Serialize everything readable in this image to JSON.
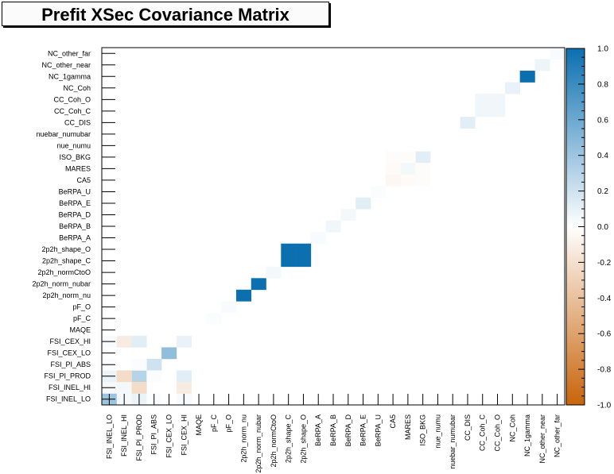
{
  "chart_data": {
    "type": "heatmap",
    "title": "Prefit XSec Covariance Matrix",
    "parameters": [
      "FSI_INEL_LO",
      "FSI_INEL_HI",
      "FSI_PI_PROD",
      "FSI_PI_ABS",
      "FSI_CEX_LO",
      "FSI_CEX_HI",
      "MAQE",
      "pF_C",
      "pF_O",
      "2p2h_norm_nu",
      "2p2h_norm_nubar",
      "2p2h_normCtoO",
      "2p2h_shape_C",
      "2p2h_shape_O",
      "BeRPA_A",
      "BeRPA_B",
      "BeRPA_D",
      "BeRPA_E",
      "BeRPA_U",
      "CA5",
      "MARES",
      "ISO_BKG",
      "nue_numu",
      "nuebar_numubar",
      "CC_DIS",
      "CC_Coh_C",
      "CC_Coh_O",
      "NC_Coh",
      "NC_1gamma",
      "NC_other_near",
      "NC_other_far"
    ],
    "cells": [
      [
        0,
        0,
        0.41
      ],
      [
        1,
        1,
        0.05
      ],
      [
        2,
        2,
        0.3
      ],
      [
        3,
        3,
        0.2
      ],
      [
        4,
        4,
        0.45
      ],
      [
        5,
        5,
        0.09
      ],
      [
        0,
        1,
        0.04
      ],
      [
        1,
        0,
        0.04
      ],
      [
        0,
        2,
        0.08
      ],
      [
        2,
        0,
        0.08
      ],
      [
        1,
        2,
        -0.22
      ],
      [
        2,
        1,
        -0.22
      ],
      [
        0,
        5,
        0.03
      ],
      [
        5,
        0,
        0.03
      ],
      [
        1,
        5,
        -0.12
      ],
      [
        5,
        1,
        -0.12
      ],
      [
        2,
        5,
        0.12
      ],
      [
        5,
        2,
        0.12
      ],
      [
        3,
        0,
        0.02
      ],
      [
        0,
        3,
        0.02
      ],
      [
        3,
        2,
        0.02
      ],
      [
        2,
        3,
        0.02
      ],
      [
        9,
        9,
        1.0
      ],
      [
        10,
        10,
        1.0
      ],
      [
        11,
        11,
        0.05
      ],
      [
        12,
        12,
        1.0
      ],
      [
        12,
        13,
        1.0
      ],
      [
        13,
        12,
        1.0
      ],
      [
        13,
        13,
        1.0
      ],
      [
        7,
        7,
        0.02
      ],
      [
        8,
        8,
        0.03
      ],
      [
        14,
        14,
        0.03
      ],
      [
        15,
        15,
        0.06
      ],
      [
        16,
        16,
        0.05
      ],
      [
        17,
        17,
        0.12
      ],
      [
        18,
        18,
        0.02
      ],
      [
        19,
        19,
        -0.05
      ],
      [
        20,
        20,
        0.05
      ],
      [
        21,
        21,
        0.12
      ],
      [
        19,
        20,
        -0.03
      ],
      [
        20,
        19,
        -0.03
      ],
      [
        19,
        21,
        -0.02
      ],
      [
        21,
        19,
        -0.02
      ],
      [
        20,
        21,
        -0.02
      ],
      [
        21,
        20,
        -0.02
      ],
      [
        24,
        24,
        0.12
      ],
      [
        25,
        25,
        0.06
      ],
      [
        25,
        26,
        0.06
      ],
      [
        26,
        25,
        0.06
      ],
      [
        26,
        26,
        0.06
      ],
      [
        27,
        27,
        0.09
      ],
      [
        28,
        28,
        1.0
      ],
      [
        29,
        29,
        0.07
      ],
      [
        30,
        30,
        0.03
      ]
    ],
    "zlim": [
      -1.0,
      1.0
    ],
    "colorbar_ticks": [
      "-1.0",
      "-0.8",
      "-0.6",
      "-0.4",
      "-0.2",
      "0.0",
      "0.2",
      "0.4",
      "0.6",
      "0.8",
      "1.0"
    ],
    "colors": {
      "negative": "#c8640a",
      "zero": "#ffffff",
      "positive": "#0b6fb0"
    }
  }
}
